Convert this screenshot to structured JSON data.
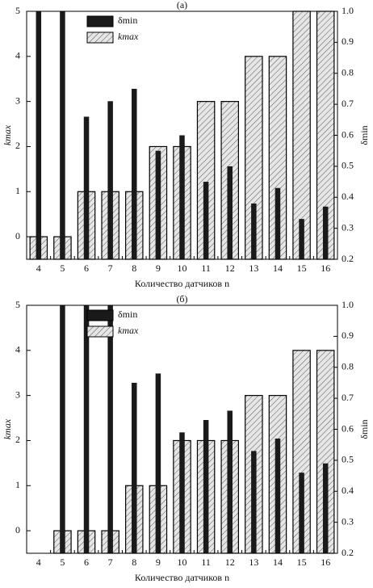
{
  "chart_data": [
    {
      "type": "bar",
      "title": "(а)",
      "x_label": "Количество датчиков n",
      "y_label": "kmax",
      "y2_label": "δmin",
      "categories": [
        "4",
        "5",
        "6",
        "7",
        "8",
        "9",
        "10",
        "11",
        "12",
        "13",
        "14",
        "15",
        "16"
      ],
      "legend": "upper left",
      "series": [
        {
          "name": "δmin",
          "color": "#1a1a1a",
          "axis": "y2",
          "values": [
            1.0,
            1.0,
            0.66,
            0.71,
            0.75,
            0.55,
            0.6,
            0.45,
            0.5,
            0.38,
            0.43,
            0.33,
            0.37
          ]
        },
        {
          "name": "kmax",
          "color": "#e6e6e6",
          "values": [
            0,
            0,
            1,
            1,
            1,
            2,
            2,
            3,
            3,
            4,
            4,
            5,
            5
          ]
        }
      ],
      "ylim": [
        -0.5,
        5
      ],
      "yticks": [
        0,
        1,
        2,
        3,
        4,
        5
      ],
      "y2lim": [
        0.2,
        1.0
      ],
      "y2ticks": [
        0.2,
        0.3,
        0.4,
        0.5,
        0.6,
        0.7,
        0.8,
        0.9,
        {
          "value": 1,
          "label": "1.0"
        }
      ]
    },
    {
      "type": "bar",
      "title": "(б)",
      "x_label": "Количество датчиков n",
      "y_label": "kmax",
      "y2_label": "δmin",
      "categories": [
        "4",
        "5",
        "6",
        "7",
        "8",
        "9",
        "10",
        "11",
        "12",
        "13",
        "14",
        "15",
        "16"
      ],
      "legend": "upper left",
      "series": [
        {
          "name": "δmin",
          "color": "#1a1a1a",
          "axis": "y2",
          "values": [
            null,
            1.0,
            1.0,
            1.0,
            0.75,
            0.78,
            0.59,
            0.63,
            0.66,
            0.53,
            0.57,
            0.46,
            0.49
          ]
        },
        {
          "name": "kmax",
          "color": "#e6e6e6",
          "values": [
            null,
            0,
            0,
            0,
            1,
            1,
            2,
            2,
            2,
            3,
            3,
            4,
            4
          ]
        }
      ],
      "ylim": [
        -0.5,
        5
      ],
      "yticks": [
        0,
        1,
        2,
        3,
        4,
        5
      ],
      "y2lim": [
        0.2,
        1.0
      ],
      "y2ticks": [
        0.2,
        0.3,
        0.4,
        0.5,
        0.6,
        0.7,
        0.8,
        0.9,
        {
          "value": 1,
          "label": "1.0"
        }
      ]
    }
  ]
}
